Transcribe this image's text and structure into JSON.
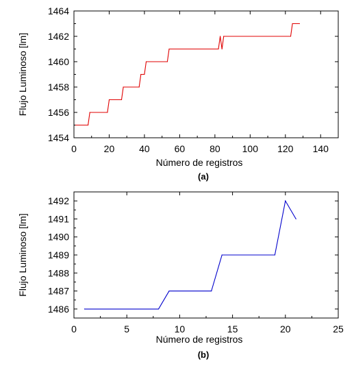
{
  "chart_data": [
    {
      "panel_label": "(a)",
      "type": "line",
      "xlabel": "Número de registros",
      "ylabel": "Flujo Luminoso [lm]",
      "xlim": [
        0,
        150
      ],
      "ylim": [
        1454,
        1464
      ],
      "xticks": [
        0,
        20,
        40,
        60,
        80,
        100,
        120,
        140
      ],
      "yticks": [
        1454,
        1456,
        1458,
        1460,
        1462,
        1464
      ],
      "grid": false,
      "color": "#e00000",
      "series": [
        {
          "x": [
            1,
            8,
            9,
            19,
            20,
            27,
            28,
            37,
            38,
            40,
            41,
            53,
            54,
            82,
            83,
            84,
            85,
            123,
            124,
            128
          ],
          "y": [
            1455,
            1455,
            1456,
            1456,
            1457,
            1457,
            1458,
            1458,
            1459,
            1459,
            1460,
            1460,
            1461,
            1461,
            1462,
            1461,
            1462,
            1462,
            1463,
            1463
          ]
        }
      ]
    },
    {
      "panel_label": "(b)",
      "type": "line",
      "xlabel": "Número de registros",
      "ylabel": "Flujo Luminoso [lm]",
      "xlim": [
        0,
        25
      ],
      "ylim": [
        1485.5,
        1492.5
      ],
      "xticks": [
        0,
        5,
        10,
        15,
        20,
        25
      ],
      "yticks": [
        1486,
        1487,
        1488,
        1489,
        1490,
        1491,
        1492
      ],
      "grid": false,
      "color": "#0000cc",
      "series": [
        {
          "x": [
            1,
            8,
            9,
            13,
            14,
            19,
            20,
            21
          ],
          "y": [
            1486,
            1486,
            1487,
            1487,
            1489,
            1489,
            1492,
            1491
          ]
        }
      ]
    }
  ]
}
